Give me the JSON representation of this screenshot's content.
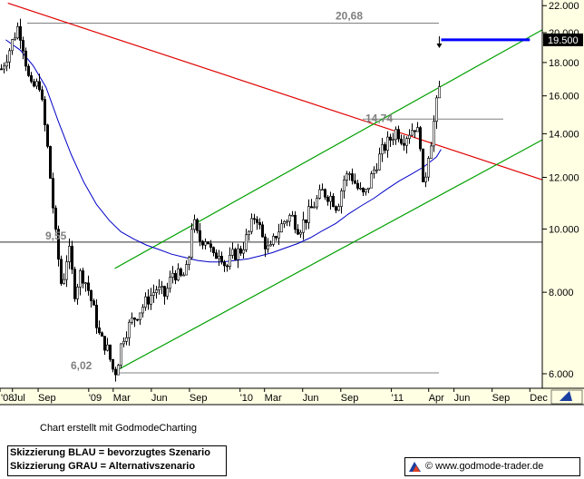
{
  "chart_data": {
    "type": "candlestick",
    "y_scale": "log",
    "ylim": [
      5700,
      22300
    ],
    "y_ticks": [
      {
        "value": 6000,
        "label": "6.000"
      },
      {
        "value": 8000,
        "label": "8.000"
      },
      {
        "value": 10000,
        "label": "10.000"
      },
      {
        "value": 12000,
        "label": "12.000"
      },
      {
        "value": 14000,
        "label": "14.000"
      },
      {
        "value": 16000,
        "label": "16.000"
      },
      {
        "value": 18000,
        "label": "18.000"
      },
      {
        "value": 20000,
        "label": "20.000"
      },
      {
        "value": 22000,
        "label": "22.000"
      }
    ],
    "x_range": [
      "2008-06-01",
      "2011-12-31"
    ],
    "x_ticks": [
      {
        "date": "2008-06-01",
        "label": "'08"
      },
      {
        "date": "2008-07-01",
        "label": "Jul"
      },
      {
        "date": "2008-09-01",
        "label": "Sep"
      },
      {
        "date": "2009-01-01",
        "label": "'09"
      },
      {
        "date": "2009-03-01",
        "label": "Mar"
      },
      {
        "date": "2009-06-01",
        "label": "Jun"
      },
      {
        "date": "2009-09-01",
        "label": "Sep"
      },
      {
        "date": "2010-01-01",
        "label": "'10"
      },
      {
        "date": "2010-03-01",
        "label": "Mar"
      },
      {
        "date": "2010-06-01",
        "label": "Jun"
      },
      {
        "date": "2010-09-01",
        "label": "Sep"
      },
      {
        "date": "2011-01-01",
        "label": "'11"
      },
      {
        "date": "2011-04-01",
        "label": "Apr"
      },
      {
        "date": "2011-06-01",
        "label": "Jun"
      },
      {
        "date": "2011-09-01",
        "label": "Sep"
      },
      {
        "date": "2011-12-01",
        "label": "Dec"
      }
    ],
    "price_path": [
      [
        "2008-06-01",
        17600
      ],
      [
        "2008-06-20",
        18800
      ],
      [
        "2008-07-10",
        20400
      ],
      [
        "2008-07-20",
        19700
      ],
      [
        "2008-08-10",
        16400
      ],
      [
        "2008-09-01",
        16700
      ],
      [
        "2008-09-20",
        13400
      ],
      [
        "2008-10-10",
        9800
      ],
      [
        "2008-10-25",
        8100
      ],
      [
        "2008-11-10",
        9400
      ],
      [
        "2008-11-25",
        8000
      ],
      [
        "2008-12-10",
        8600
      ],
      [
        "2008-12-25",
        8200
      ],
      [
        "2009-01-10",
        7500
      ],
      [
        "2009-01-25",
        6800
      ],
      [
        "2009-02-10",
        6600
      ],
      [
        "2009-02-25",
        6100
      ],
      [
        "2009-03-05",
        6050
      ],
      [
        "2009-03-20",
        6800
      ],
      [
        "2009-04-10",
        7200
      ],
      [
        "2009-05-01",
        7500
      ],
      [
        "2009-05-20",
        7800
      ],
      [
        "2009-06-10",
        8100
      ],
      [
        "2009-07-01",
        7900
      ],
      [
        "2009-07-20",
        8600
      ],
      [
        "2009-08-10",
        8400
      ],
      [
        "2009-08-25",
        8700
      ],
      [
        "2009-09-05",
        10400
      ],
      [
        "2009-09-20",
        9600
      ],
      [
        "2009-10-10",
        9700
      ],
      [
        "2009-10-25",
        9000
      ],
      [
        "2009-11-10",
        9300
      ],
      [
        "2009-11-25",
        8700
      ],
      [
        "2009-12-10",
        9100
      ],
      [
        "2010-01-01",
        9300
      ],
      [
        "2010-01-20",
        9900
      ],
      [
        "2010-02-05",
        10600
      ],
      [
        "2010-02-20",
        9700
      ],
      [
        "2010-03-10",
        9200
      ],
      [
        "2010-03-25",
        9800
      ],
      [
        "2010-04-15",
        10300
      ],
      [
        "2010-05-01",
        10500
      ],
      [
        "2010-05-20",
        10000
      ],
      [
        "2010-06-10",
        10500
      ],
      [
        "2010-06-25",
        10900
      ],
      [
        "2010-07-15",
        11400
      ],
      [
        "2010-08-05",
        11200
      ],
      [
        "2010-08-20",
        10800
      ],
      [
        "2010-09-05",
        11900
      ],
      [
        "2010-09-20",
        12200
      ],
      [
        "2010-10-10",
        11500
      ],
      [
        "2010-10-25",
        11200
      ],
      [
        "2010-11-10",
        12000
      ],
      [
        "2010-11-25",
        12700
      ],
      [
        "2010-12-10",
        13300
      ],
      [
        "2010-12-25",
        13700
      ],
      [
        "2011-01-10",
        14200
      ],
      [
        "2011-01-25",
        13700
      ],
      [
        "2011-02-10",
        14100
      ],
      [
        "2011-02-25",
        14400
      ],
      [
        "2011-03-10",
        13500
      ],
      [
        "2011-03-16",
        11200
      ],
      [
        "2011-03-25",
        12800
      ],
      [
        "2011-04-05",
        13800
      ],
      [
        "2011-04-15",
        15300
      ],
      [
        "2011-04-22",
        16200
      ],
      [
        "2011-04-30",
        17300
      ]
    ],
    "series": [
      {
        "name": "moving-average",
        "color": "#0000c8",
        "x": [
          "2008-06-15",
          "2008-07-20",
          "2008-08-20",
          "2008-09-20",
          "2008-10-20",
          "2008-11-20",
          "2008-12-20",
          "2009-01-20",
          "2009-02-20",
          "2009-03-20",
          "2009-04-20",
          "2009-05-20",
          "2009-06-20",
          "2009-07-20",
          "2009-08-20",
          "2009-09-20",
          "2009-10-20",
          "2009-11-20",
          "2009-12-20",
          "2010-01-20",
          "2010-02-20",
          "2010-03-20",
          "2010-04-20",
          "2010-05-20",
          "2010-06-20",
          "2010-07-20",
          "2010-08-20",
          "2010-09-20",
          "2010-10-20",
          "2010-11-20",
          "2010-12-20",
          "2011-01-20",
          "2011-02-20",
          "2011-03-20",
          "2011-04-20",
          "2011-05-01"
        ],
        "y": [
          19500,
          18800,
          17800,
          16500,
          14600,
          13000,
          11800,
          10900,
          10300,
          9900,
          9650,
          9450,
          9300,
          9150,
          9050,
          8950,
          8900,
          8900,
          8950,
          9000,
          9100,
          9200,
          9350,
          9500,
          9700,
          9950,
          10200,
          10550,
          10850,
          11150,
          11500,
          11850,
          12150,
          12450,
          12900,
          13250
        ]
      }
    ],
    "trendlines": [
      {
        "name": "downtrend",
        "color": "#e00000",
        "from": [
          "2008-06-20",
          22200
        ],
        "to": [
          "2011-12-31",
          11900
        ]
      },
      {
        "name": "channel-top",
        "color": "#00a000",
        "from": [
          "2009-03-05",
          8700
        ],
        "to": [
          "2011-12-31",
          20200
        ]
      },
      {
        "name": "channel-bottom",
        "color": "#00a000",
        "from": [
          "2009-03-05",
          6050
        ],
        "to": [
          "2011-12-31",
          13700
        ]
      },
      {
        "name": "target-projection",
        "color": "#0000ff",
        "from": [
          "2011-05-01",
          19500
        ],
        "to": [
          "2011-12-01",
          19500
        ]
      }
    ],
    "horizontal_levels": [
      {
        "value": 20680,
        "label": "20,68",
        "color": "#808080"
      },
      {
        "value": 14740,
        "label": "14,74",
        "color": "#808080"
      },
      {
        "value": 9550,
        "label": "9,55",
        "color": "#808080",
        "bold": true
      },
      {
        "value": 6020,
        "label": "6,02",
        "color": "#808080"
      }
    ],
    "price_marker": {
      "value": 19500,
      "label": "19.500"
    },
    "arrow_marker": {
      "date": "2011-05-01"
    }
  },
  "footer": {
    "credit": "Chart erstellt mit GodmodeCharting",
    "legend": [
      "Skizzierung BLAU = bevorzugtes Szenario",
      "Skizzierung GRAU = Alternativszenario"
    ],
    "website": "© www.godmode-trader.de"
  }
}
